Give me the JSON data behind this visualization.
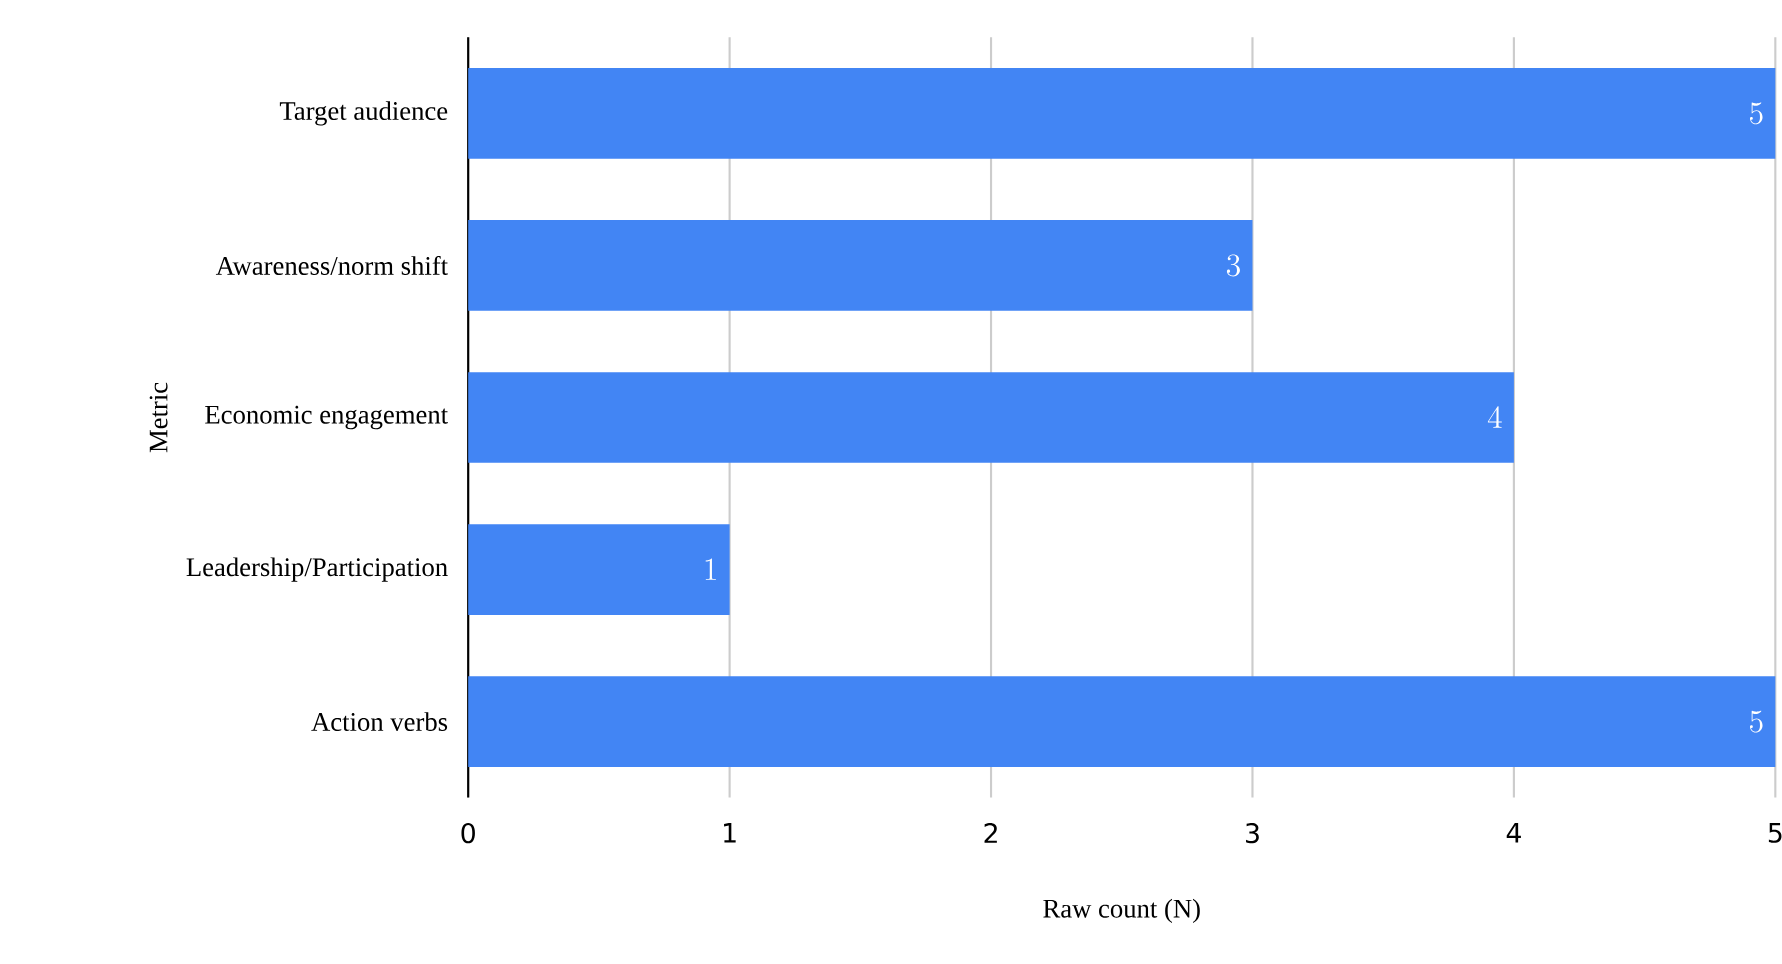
{
  "chart_data": {
    "type": "bar",
    "orientation": "horizontal",
    "xlabel": "Raw count (N)",
    "ylabel": "Metric",
    "categories": [
      "Target audience",
      "Awareness/norm shift",
      "Economic engagement",
      "Leadership/Participation",
      "Action verbs"
    ],
    "values": [
      5,
      3,
      4,
      1,
      5
    ],
    "color": "#4285f4",
    "xlim": [
      0,
      5
    ],
    "xticks": [
      0,
      1,
      2,
      3,
      4,
      5
    ],
    "grid": "x",
    "data_labels": true
  }
}
